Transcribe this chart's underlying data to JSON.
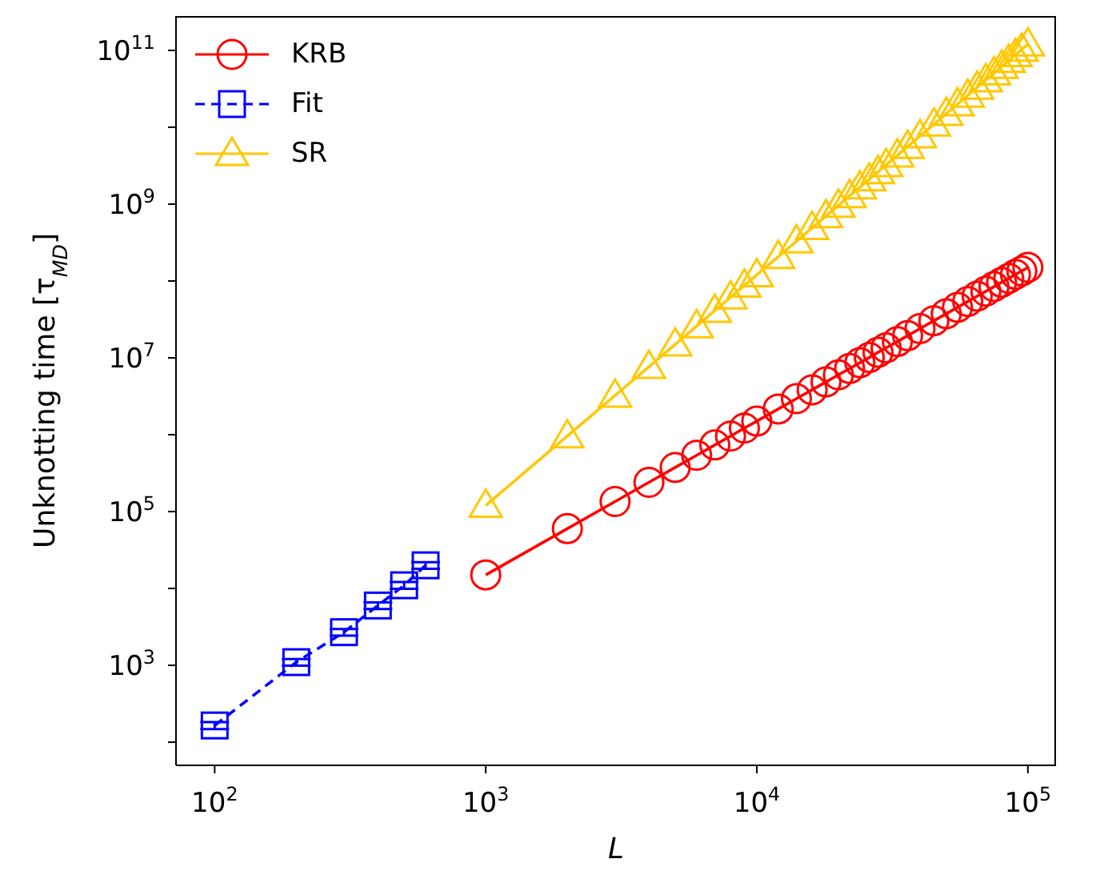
{
  "chart_data": {
    "type": "line",
    "xlabel": "L",
    "ylabel": "Unknotting time [τ$_{MD}$]",
    "log": "xy",
    "legend": "top left",
    "grid": false,
    "xlim": [
      72,
      127000
    ],
    "ylim": [
      50,
      280000000000
    ],
    "xticks": [
      {
        "value": 100,
        "label": "10$^{2}$"
      },
      {
        "value": 1000,
        "label": "10$^{3}$"
      },
      {
        "value": 10000,
        "label": "10$^{4}$"
      },
      {
        "value": 100000,
        "label": "10$^{5}$"
      }
    ],
    "yticks": [
      {
        "value": 100,
        "label": null
      },
      {
        "value": 1000,
        "label": "10$^{3}$"
      },
      {
        "value": 10000,
        "label": null
      },
      {
        "value": 100000,
        "label": "10$^{5}$"
      },
      {
        "value": 1000000,
        "label": null
      },
      {
        "value": 10000000,
        "label": "10$^{7}$"
      },
      {
        "value": 100000000,
        "label": null
      },
      {
        "value": 1000000000,
        "label": "10$^{9}$"
      },
      {
        "value": 10000000000,
        "label": null
      },
      {
        "value": 100000000000,
        "label": "10$^{11}$"
      }
    ],
    "x": [
      1000,
      2000,
      3000,
      4000,
      5000,
      6000,
      7000,
      8000,
      9000,
      10000,
      12000,
      14000,
      16000,
      18000,
      20000,
      22000,
      24000,
      26000,
      28000,
      30000,
      33000,
      36000,
      40000,
      45000,
      50000,
      55000,
      60000,
      65000,
      70000,
      75000,
      80000,
      85000,
      90000,
      95000,
      100000
    ],
    "series": [
      {
        "name": "KRB",
        "color": "#ff0000",
        "marker": "circle",
        "line_style": "solid",
        "values": [
          15000,
          60000,
          135000,
          240000,
          375000,
          540000,
          735000,
          960000,
          1220000,
          1500000,
          2160000,
          2940000,
          3840000,
          4860000,
          6000000,
          7260000,
          8640000,
          10100000,
          11800000,
          13500000,
          16300000,
          19400000,
          24000000,
          30400000,
          37500000,
          45400000,
          54000000,
          63400000,
          73500000,
          84400000,
          96000000,
          108000000,
          122000000,
          135000000,
          150000000
        ]
      },
      {
        "name": "Fit",
        "color": "#0000ff",
        "marker": "square",
        "line_style": "dashed",
        "x": [
          100,
          200,
          300,
          400,
          500,
          600
        ],
        "values": [
          165,
          1100,
          2700,
          6000,
          11000,
          20000
        ],
        "errors": [
          17,
          110,
          270,
          600,
          1100,
          2000
        ]
      },
      {
        "name": "SR",
        "color": "#ffc800",
        "marker": "triangle",
        "line_style": "solid",
        "values": [
          120000,
          960000,
          3240000,
          7680000,
          15000000,
          25900000,
          41200000,
          61400000,
          87500000,
          120000000,
          207000000,
          329000000,
          492000000,
          700000000,
          960000000,
          1280000000,
          1660000000,
          2110000000,
          2630000000,
          3240000000,
          4310000000,
          5600000000,
          7680000000,
          10900000000,
          15000000000,
          20000000000,
          25900000000,
          33000000000,
          41200000000,
          50600000000,
          61400000000,
          73700000000,
          87500000000,
          103000000000,
          120000000000
        ]
      }
    ]
  }
}
